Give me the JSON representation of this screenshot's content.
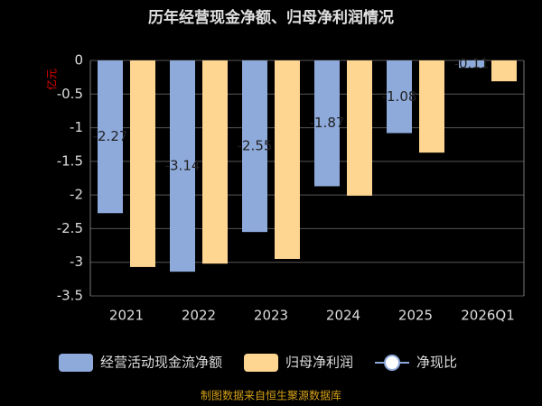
{
  "chart_data": {
    "type": "bar",
    "title": "历年经营现金净额、归母净利润情况",
    "y_label": "亿元",
    "footer": "制图数据来自恒生聚源数据库",
    "categories": [
      "2021",
      "2022",
      "2023",
      "2024",
      "2025",
      "2026Q1"
    ],
    "series": [
      {
        "name": "经营活动现金流净额",
        "color": "#8eaadb",
        "values": [
          -2.27,
          -3.14,
          -2.55,
          -1.87,
          -1.08,
          -0.11
        ],
        "labels_shown": true
      },
      {
        "name": "归母净利润",
        "color": "#ffd592",
        "values": [
          -3.07,
          -3.02,
          -2.95,
          -2.01,
          -1.37,
          -0.31
        ]
      },
      {
        "name": "净现比",
        "color": "#ffffff",
        "values": [
          null,
          null,
          null,
          null,
          null,
          null
        ]
      }
    ],
    "ylim": [
      -3.5,
      0
    ],
    "yticks": [
      0,
      -0.5,
      -1,
      -1.5,
      -2,
      -2.5,
      -3,
      -3.5
    ],
    "grid": true
  }
}
